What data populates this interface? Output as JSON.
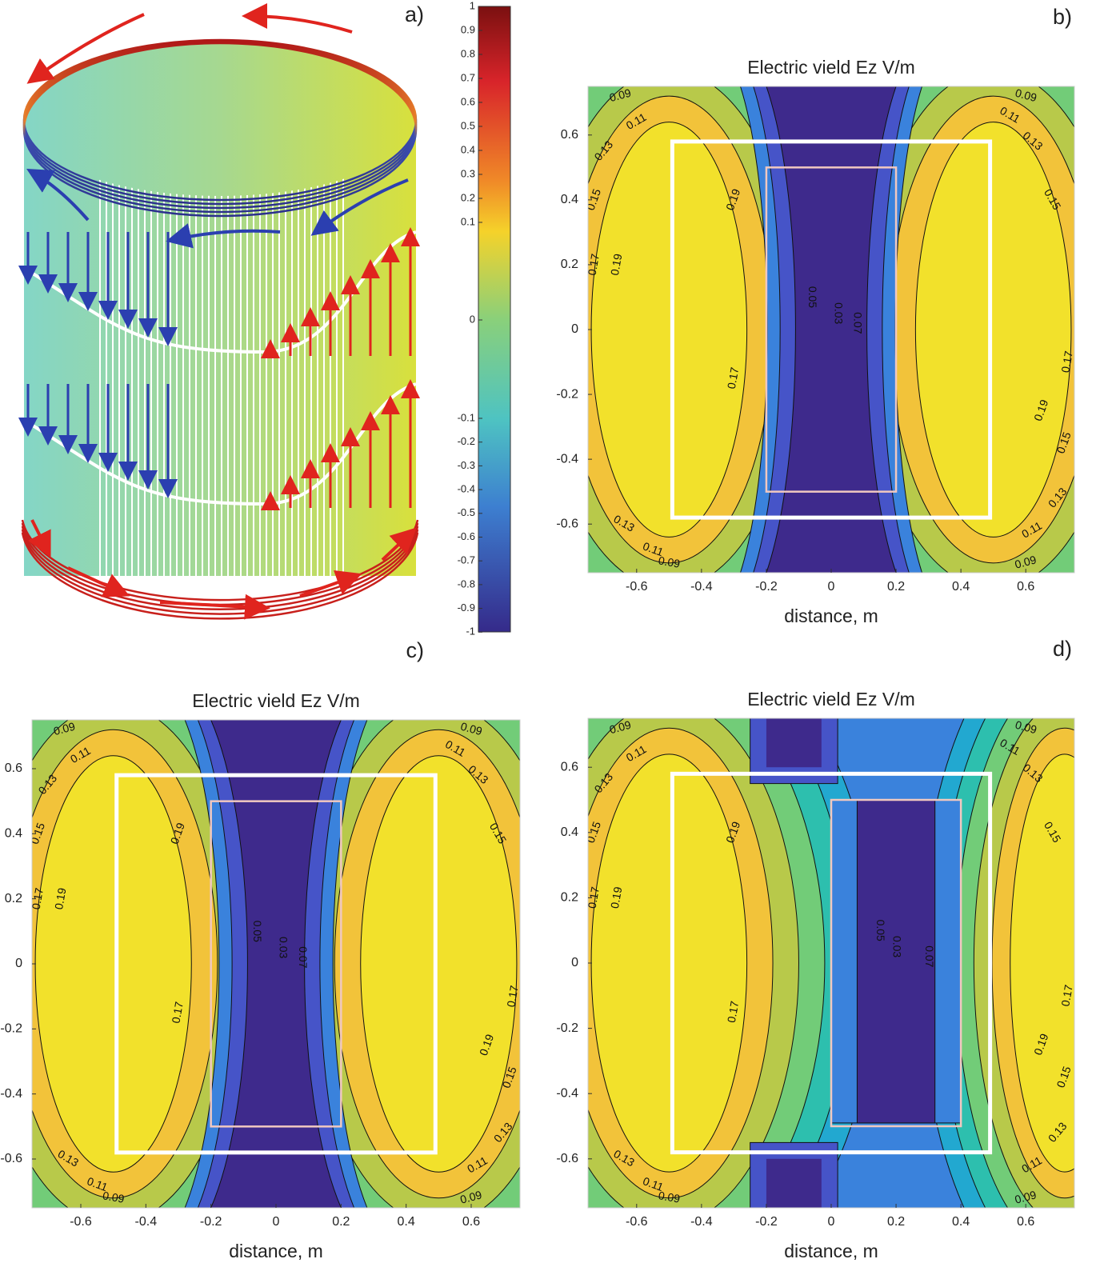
{
  "chart_data": [
    {
      "type": "colorbar",
      "label": "a)",
      "ticks": [
        1,
        0.9,
        0.8,
        0.7,
        0.6,
        0.5,
        0.4,
        0.3,
        0.2,
        0.1,
        0,
        -0.1,
        -0.2,
        -0.3,
        -0.4,
        -0.5,
        -0.6,
        -0.7,
        -0.8,
        -0.9,
        -1
      ]
    },
    {
      "type": "contour",
      "label": "b)",
      "title": "Electric vield Ez V/m",
      "xlabel": "distance, m",
      "xlim": [
        -0.75,
        0.75
      ],
      "ylim": [
        -0.75,
        0.75
      ],
      "xticks": [
        -0.6,
        -0.4,
        -0.2,
        0,
        0.2,
        0.4,
        0.6
      ],
      "yticks": [
        -0.6,
        -0.4,
        -0.2,
        0,
        0.2,
        0.4,
        0.6
      ],
      "levels": [
        0.03,
        0.05,
        0.07,
        0.09,
        0.11,
        0.13,
        0.15,
        0.17,
        0.19
      ]
    },
    {
      "type": "contour",
      "label": "c)",
      "title": "Electric vield Ez V/m",
      "xlabel": "distance, m",
      "xlim": [
        -0.75,
        0.75
      ],
      "ylim": [
        -0.75,
        0.75
      ],
      "xticks": [
        -0.6,
        -0.4,
        -0.2,
        0,
        0.2,
        0.4,
        0.6
      ],
      "yticks": [
        -0.6,
        -0.4,
        -0.2,
        0,
        0.2,
        0.4,
        0.6
      ],
      "levels": [
        0.03,
        0.05,
        0.07,
        0.09,
        0.11,
        0.13,
        0.15,
        0.17,
        0.19
      ]
    },
    {
      "type": "contour",
      "label": "d)",
      "title": "Electric vield Ez V/m",
      "xlabel": "distance, m",
      "xlim": [
        -0.75,
        0.75
      ],
      "ylim": [
        -0.75,
        0.75
      ],
      "xticks": [
        -0.6,
        -0.4,
        -0.2,
        0,
        0.2,
        0.4,
        0.6
      ],
      "yticks": [
        -0.6,
        -0.4,
        -0.2,
        0,
        0.2,
        0.4,
        0.6
      ],
      "levels": [
        0.03,
        0.05,
        0.07,
        0.09,
        0.11,
        0.13,
        0.15,
        0.17,
        0.19
      ]
    }
  ]
}
